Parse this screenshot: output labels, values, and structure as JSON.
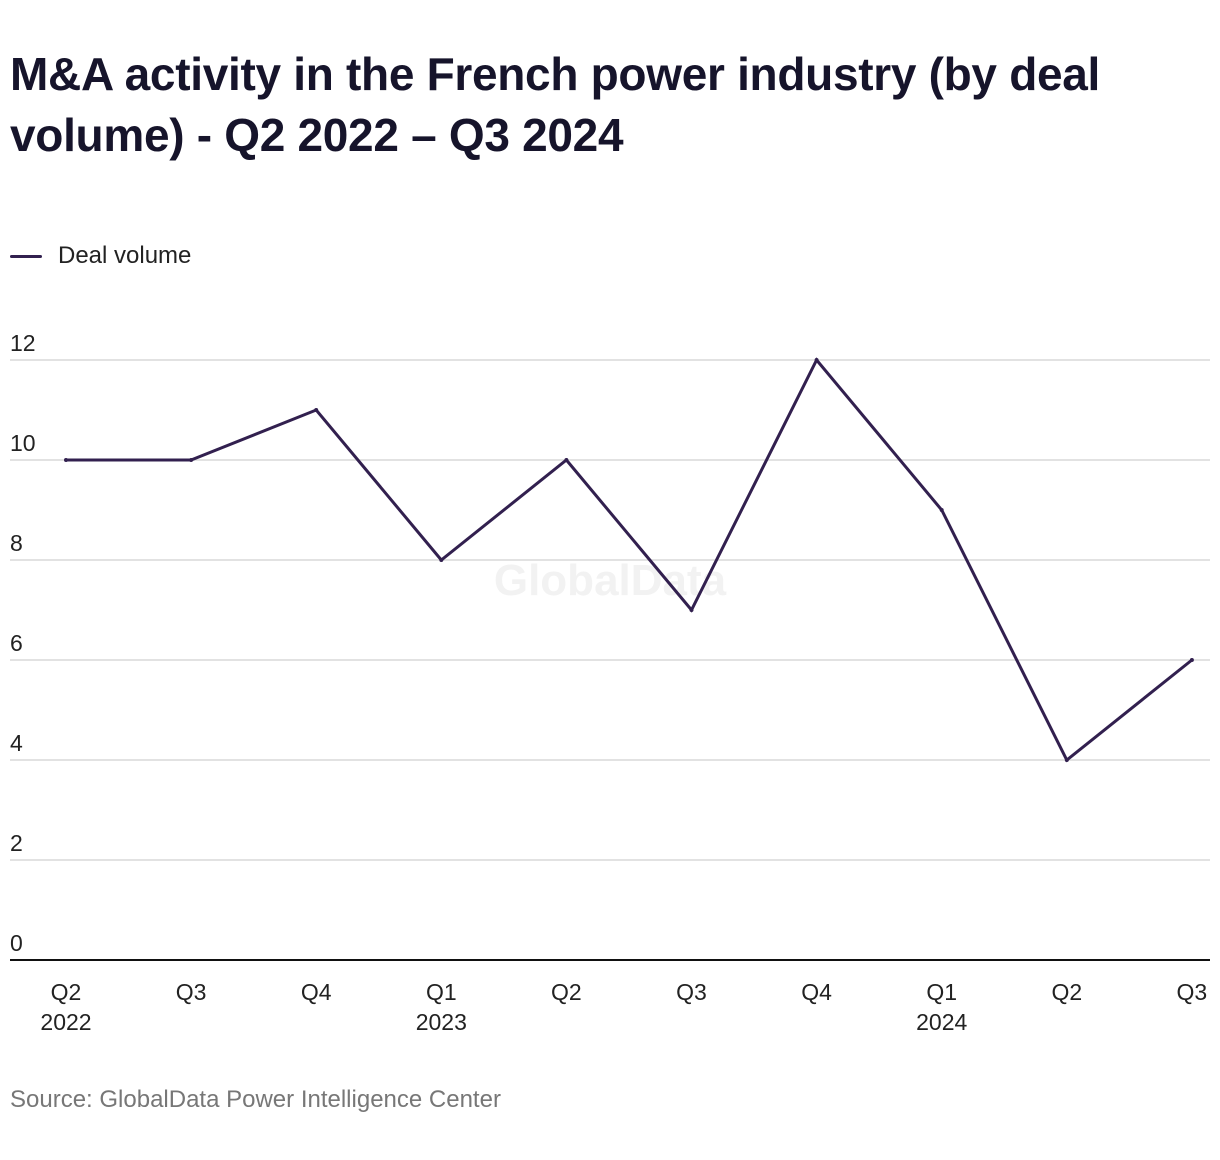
{
  "title": "M&A activity in the French power industry (by deal volume) - Q2 2022 – Q3 2024",
  "legend": {
    "label": "Deal volume"
  },
  "source": "Source: GlobalData Power Intelligence Center",
  "watermark": "GlobalData",
  "colors": {
    "line": "#32204f",
    "grid": "#d9d9d9",
    "axis": "#111111",
    "text": "#222222",
    "watermark": "#f2f2f2"
  },
  "chart_data": {
    "type": "line",
    "title": "M&A activity in the French power industry (by deal volume) - Q2 2022 – Q3 2024",
    "xlabel": "",
    "ylabel": "",
    "categories": [
      [
        "Q2",
        "2022"
      ],
      [
        "Q3"
      ],
      [
        "Q4"
      ],
      [
        "Q1",
        "2023"
      ],
      [
        "Q2"
      ],
      [
        "Q3"
      ],
      [
        "Q4"
      ],
      [
        "Q1",
        "2024"
      ],
      [
        "Q2"
      ],
      [
        "Q3"
      ]
    ],
    "series": [
      {
        "name": "Deal volume",
        "values": [
          10,
          10,
          11,
          8,
          10,
          7,
          12,
          9,
          4,
          6
        ]
      }
    ],
    "ylim": [
      0,
      12
    ],
    "yticks": [
      0,
      2,
      4,
      6,
      8,
      10,
      12
    ],
    "grid": true,
    "legend_position": "top-left"
  }
}
